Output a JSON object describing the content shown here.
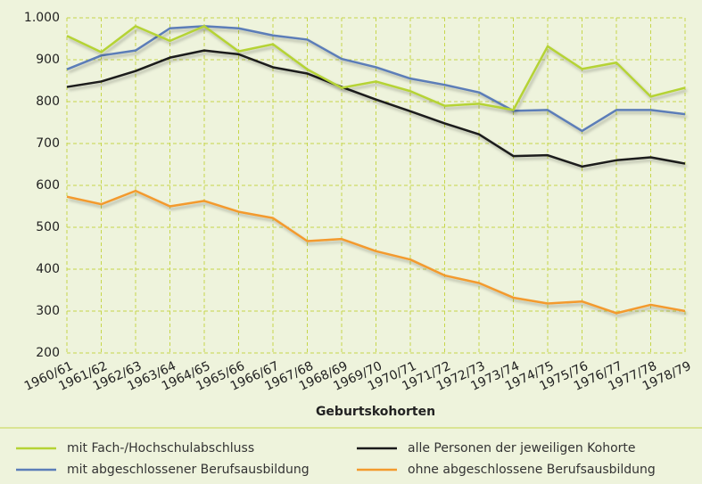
{
  "chart_data": {
    "type": "line",
    "x_label": "Geburtskohorten",
    "categories": [
      "1960/61",
      "1961/62",
      "1962/63",
      "1963/64",
      "1964/65",
      "1965/66",
      "1966/67",
      "1967/68",
      "1968/69",
      "1969/70",
      "1970/71",
      "1971/72",
      "1972/73",
      "1973/74",
      "1974/75",
      "1975/76",
      "1976/77",
      "1977/78",
      "1978/79"
    ],
    "ylim": [
      200,
      1000
    ],
    "yticks": [
      200,
      300,
      400,
      500,
      600,
      700,
      800,
      900,
      {
        "value": 1000,
        "label": "1.000"
      }
    ],
    "grid": true,
    "series": [
      {
        "name": "mit Fach-/Hochschulabschluss",
        "color": "#b5d335",
        "values": [
          957,
          918,
          980,
          945,
          980,
          920,
          937,
          877,
          833,
          848,
          825,
          790,
          795,
          780,
          932,
          878,
          893,
          812,
          833
        ]
      },
      {
        "name": "alle Personen der jeweiligen Kohorte",
        "color": "#1a1a1a",
        "values": [
          835,
          848,
          873,
          905,
          922,
          913,
          882,
          867,
          835,
          805,
          777,
          748,
          722,
          670,
          672,
          645,
          660,
          667,
          652
        ]
      },
      {
        "name": "mit abgeschlossener Berufsausbildung",
        "color": "#5b7db8",
        "values": [
          877,
          910,
          922,
          975,
          980,
          975,
          958,
          948,
          902,
          882,
          855,
          840,
          822,
          778,
          780,
          730,
          780,
          780,
          770
        ]
      },
      {
        "name": "ohne abgeschlossene Berufsausbildung",
        "color": "#f39a2d",
        "values": [
          573,
          555,
          587,
          550,
          563,
          537,
          522,
          467,
          472,
          443,
          423,
          385,
          367,
          332,
          318,
          323,
          295,
          315,
          300
        ]
      }
    ]
  }
}
